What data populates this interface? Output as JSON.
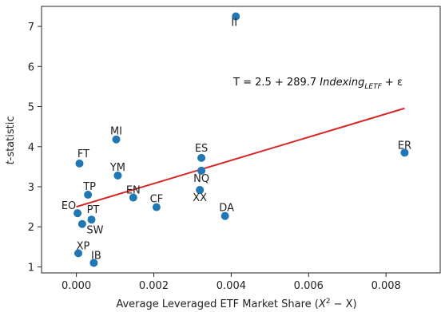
{
  "chart_data": {
    "type": "scatter",
    "title": "",
    "xlabel_prefix": "Average Leveraged ETF Market Share (",
    "xlabel_math_base": "X",
    "xlabel_math_sup": "2",
    "xlabel_math_rest": " − X",
    "xlabel_suffix": ")",
    "ylabel_italic": "t",
    "ylabel_rest": "-statistic",
    "xlim": [
      -0.0009,
      0.0094
    ],
    "ylim": [
      0.85,
      7.5
    ],
    "xticks": [
      0.0,
      0.002,
      0.004,
      0.006,
      0.008
    ],
    "xtick_labels": [
      "0.000",
      "0.002",
      "0.004",
      "0.006",
      "0.008"
    ],
    "yticks": [
      1,
      2,
      3,
      4,
      5,
      6,
      7
    ],
    "ytick_labels": [
      "1",
      "2",
      "3",
      "4",
      "5",
      "6",
      "7"
    ],
    "grid": false,
    "point_color": "#1f77b4",
    "line_color": "#d62728",
    "points": [
      {
        "label": "II",
        "x": 0.00412,
        "y": 7.25
      },
      {
        "label": "ER",
        "x": 0.00848,
        "y": 3.85
      },
      {
        "label": "MI",
        "x": 0.00103,
        "y": 4.18
      },
      {
        "label": "FT",
        "x": 8e-05,
        "y": 3.58
      },
      {
        "label": "ES",
        "x": 0.00323,
        "y": 3.72
      },
      {
        "label": "NQ",
        "x": 0.00323,
        "y": 3.4
      },
      {
        "label": "YM",
        "x": 0.00107,
        "y": 3.28
      },
      {
        "label": "XX",
        "x": 0.00319,
        "y": 2.92
      },
      {
        "label": "TP",
        "x": 0.0003,
        "y": 2.8
      },
      {
        "label": "EN",
        "x": 0.00147,
        "y": 2.73
      },
      {
        "label": "CF",
        "x": 0.00207,
        "y": 2.49
      },
      {
        "label": "DA",
        "x": 0.00384,
        "y": 2.27
      },
      {
        "label": "EO",
        "x": 3e-05,
        "y": 2.34
      },
      {
        "label": "PT",
        "x": 0.00039,
        "y": 2.18
      },
      {
        "label": "SW",
        "x": 0.00015,
        "y": 2.07
      },
      {
        "label": "XP",
        "x": 5e-05,
        "y": 1.34
      },
      {
        "label": "IB",
        "x": 0.00045,
        "y": 1.1
      }
    ],
    "regression": {
      "intercept": 2.5,
      "slope": 289.7,
      "x_range": [
        0.0,
        0.00848
      ],
      "eq_prefix": "T = 2.5 + 289.7 ",
      "eq_var": "Indexing",
      "eq_sub": "LETF",
      "eq_suffix": "  + ε"
    }
  }
}
